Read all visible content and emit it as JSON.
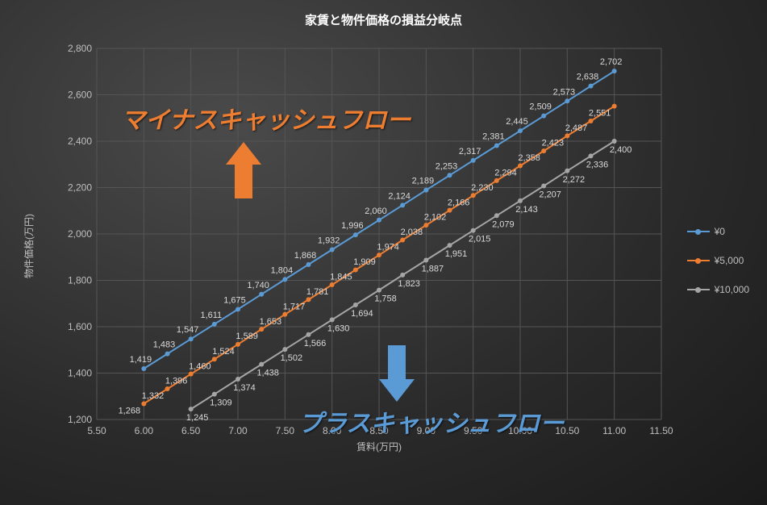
{
  "title": "家賃と物件価格の損益分岐点",
  "chart": {
    "type": "line",
    "background_gradient": {
      "center": "#4a4a4a",
      "edge": "#1a1a1a"
    },
    "grid_color": "#555555",
    "tick_label_color": "#bfbfbf",
    "data_label_color": "#d9d9d9",
    "axis_title_color": "#bfbfbf",
    "title_color": "#ffffff",
    "title_fontsize": 15,
    "tick_fontsize": 12,
    "data_label_fontsize": 11,
    "marker_style": "circle",
    "marker_size": 6,
    "line_width": 2,
    "x": {
      "label": "賃料(万円)",
      "min": 5.5,
      "max": 11.5,
      "ticks": [
        5.5,
        6.0,
        6.5,
        7.0,
        7.5,
        8.0,
        8.5,
        9.0,
        9.5,
        10.0,
        10.5,
        11.0,
        11.5
      ],
      "tick_labels": [
        "5.50",
        "6.00",
        "6.50",
        "7.00",
        "7.50",
        "8.00",
        "8.50",
        "9.00",
        "9.50",
        "10.00",
        "10.50",
        "11.00",
        "11.50"
      ]
    },
    "y": {
      "label": "物件価格(万円)",
      "min": 1200,
      "max": 2800,
      "ticks": [
        1200,
        1400,
        1600,
        1800,
        2000,
        2200,
        2400,
        2600,
        2800
      ],
      "tick_labels": [
        "1,200",
        "1,400",
        "1,600",
        "1,800",
        "2,000",
        "2,200",
        "2,400",
        "2,600",
        "2,800"
      ]
    },
    "x_values": [
      6.0,
      6.25,
      6.5,
      6.75,
      7.0,
      7.25,
      7.5,
      7.75,
      8.0,
      8.25,
      8.5,
      8.75,
      9.0,
      9.25,
      9.5,
      9.75,
      10.0,
      10.25,
      10.5,
      10.75,
      11.0
    ],
    "series": [
      {
        "name": "¥0",
        "color": "#5b9bd5",
        "values": [
          1419,
          1483,
          1547,
          1611,
          1675,
          1740,
          1804,
          1868,
          1932,
          1996,
          2060,
          2124,
          2189,
          2253,
          2317,
          2381,
          2445,
          2509,
          2573,
          2638,
          2702
        ],
        "labels": [
          "1,419",
          "1,483",
          "1,547",
          "1,611",
          "1,675",
          "1,740",
          "1,804",
          "1,868",
          "1,932",
          "1,996",
          "2,060",
          "2,124",
          "2,189",
          "2,253",
          "2,317",
          "2,381",
          "2,445",
          "2,509",
          "2,573",
          "2,638",
          "2,702"
        ]
      },
      {
        "name": "¥5,000",
        "color": "#ed7d31",
        "values": [
          1268,
          1332,
          1396,
          1460,
          1524,
          1589,
          1653,
          1717,
          1781,
          1845,
          1909,
          1974,
          2038,
          2102,
          2166,
          2230,
          2294,
          2358,
          2423,
          2487,
          2551
        ],
        "labels": [
          "1,268",
          "1,332",
          "1,396",
          "1,460",
          "1,524",
          "1,589",
          "1,653",
          "1,717",
          "1,781",
          "1,845",
          "1,909",
          "1,974",
          "2,038",
          "2,102",
          "2,166",
          "2,230",
          "2,294",
          "2,358",
          "2,423",
          "2,487",
          "2,551"
        ]
      },
      {
        "name": "¥10,000",
        "color": "#a5a5a5",
        "values": [
          null,
          null,
          1245,
          1309,
          1374,
          1438,
          1502,
          1566,
          1630,
          1694,
          1758,
          1823,
          1887,
          1951,
          2015,
          2079,
          2143,
          2207,
          2272,
          2336,
          2400
        ],
        "labels": [
          null,
          null,
          "1,245",
          "1,309",
          "1,374",
          "1,438",
          "1,502",
          "1,566",
          "1,630",
          "1,694",
          "1,758",
          "1,823",
          "1,887",
          "1,951",
          "2,015",
          "2,079",
          "2,143",
          "2,207",
          "2,272",
          "2,336",
          "2,400"
        ]
      }
    ],
    "legend": {
      "position": "right",
      "items": [
        {
          "label": "¥0",
          "color": "#5b9bd5"
        },
        {
          "label": "¥5,000",
          "color": "#ed7d31"
        },
        {
          "label": "¥10,000",
          "color": "#a5a5a5"
        }
      ]
    },
    "annotations": {
      "negative_cf": {
        "text": "マイナスキャッシュフロー",
        "color": "#ed7d31",
        "fontsize": 30,
        "arrow_color": "#ed7d31",
        "arrow_direction": "up"
      },
      "positive_cf": {
        "text": "プラスキャッシュフロー",
        "color": "#5b9bd5",
        "fontsize": 30,
        "arrow_color": "#5b9bd5",
        "arrow_direction": "down"
      }
    }
  }
}
